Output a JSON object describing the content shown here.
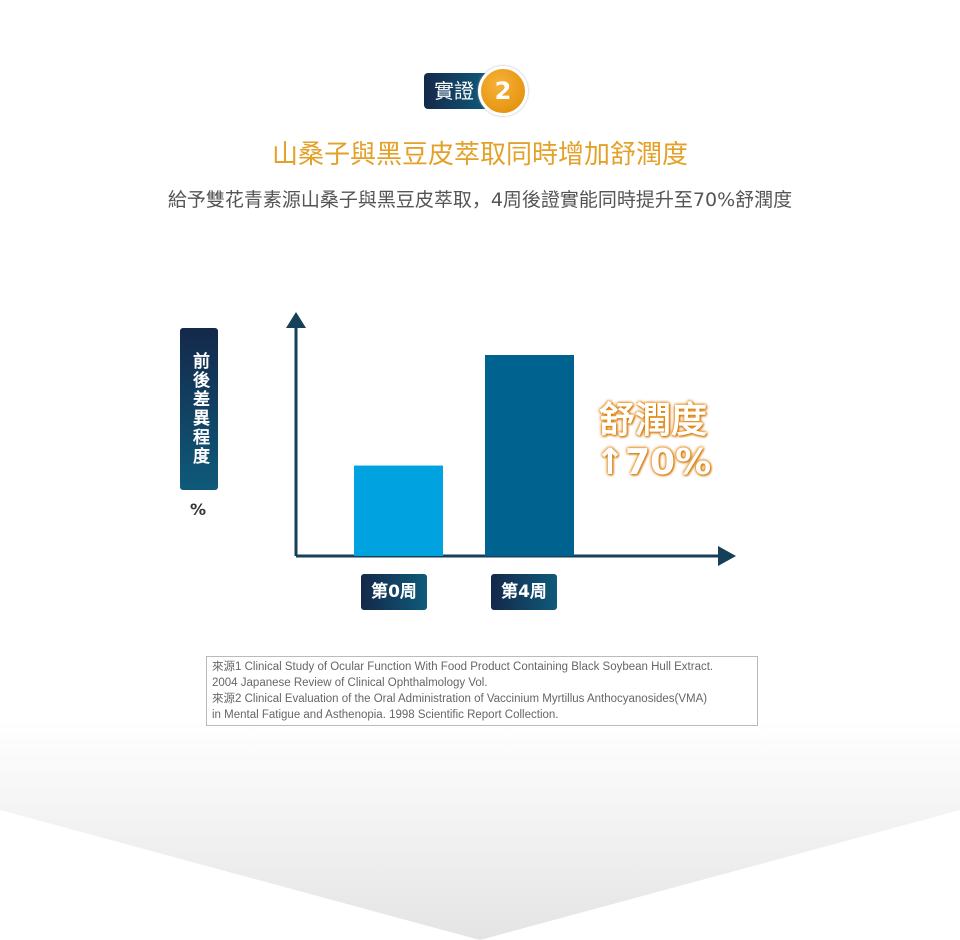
{
  "badge": {
    "label": "實證",
    "number": "2"
  },
  "title": "山桑子與黑豆皮萃取同時增加舒潤度",
  "subtitle": "給予雙花青素源山桑子與黑豆皮萃取，4周後證實能同時提升至70%舒潤度",
  "chart_data": {
    "type": "bar",
    "categories": [
      "第0周",
      "第4周"
    ],
    "values": [
      0.45,
      1.0
    ],
    "ylabel": "前後差異程度",
    "yunit": "%",
    "annotation": {
      "line1": "舒潤度",
      "line2": "↑70%"
    },
    "colors": [
      "#00a3e0",
      "#00628f"
    ],
    "grid": false
  },
  "references": [
    "來源1 Clinical Study of Ocular Function With Food Product Containing Black Soybean Hull Extract.",
    "2004 Japanese Review of Clinical Ophthalmology Vol.",
    "來源2  Clinical Evaluation of the Oral Administration of Vaccinium Myrtillus Anthocyanosides(VMA)",
    "in Mental Fatigue and Asthenopia. 1998 Scientific Report Collection."
  ]
}
